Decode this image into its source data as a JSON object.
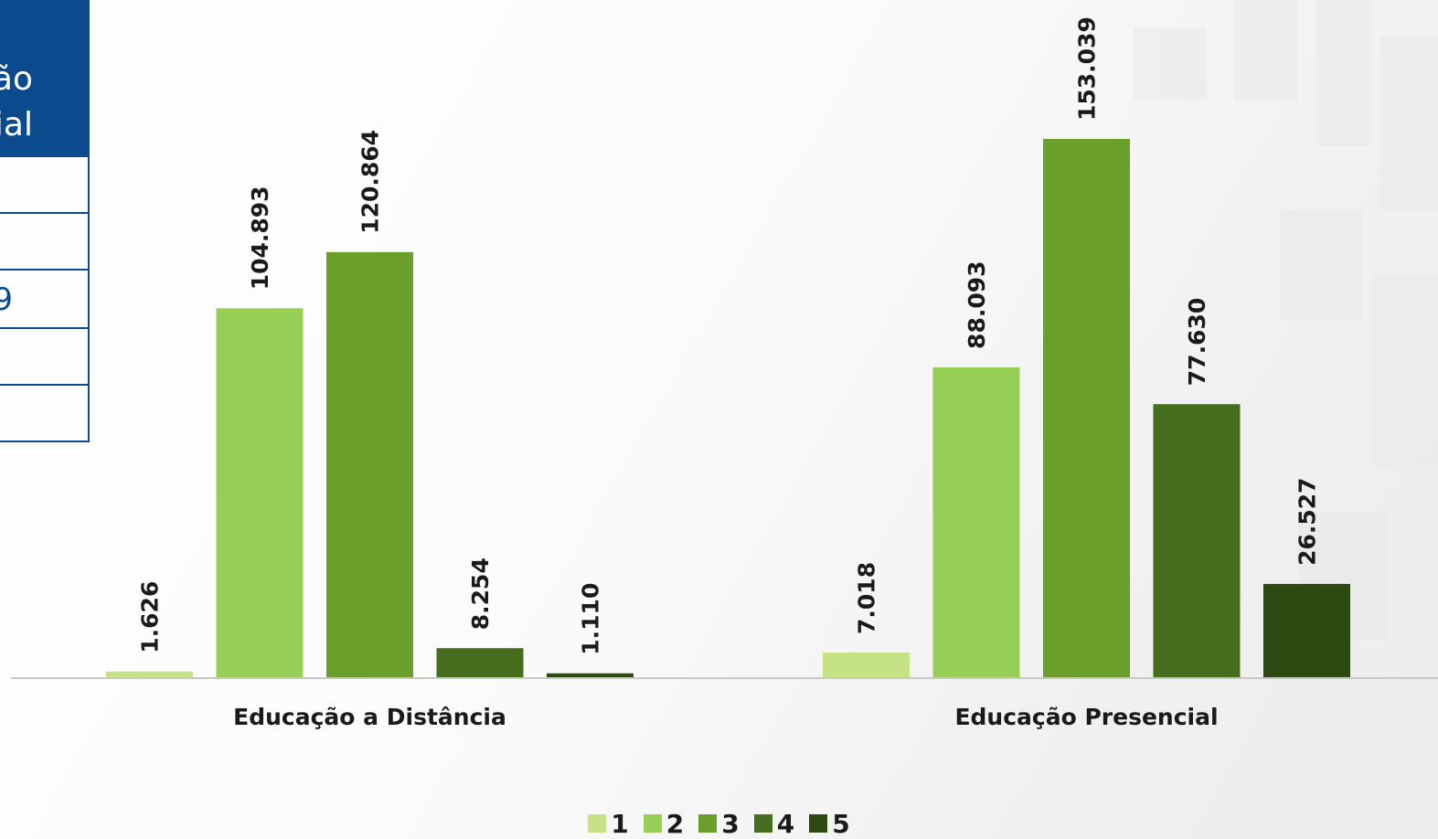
{
  "table_fragment": {
    "header_lines": [
      "ão",
      "ial"
    ],
    "rows": [
      "",
      "",
      "9",
      "",
      ""
    ]
  },
  "colors": {
    "table_blue": "#0b4a8c",
    "series": [
      "#c5e384",
      "#97cf56",
      "#6a9f2b",
      "#466c1e",
      "#2e4a13"
    ],
    "axis": "#c8c8c8"
  },
  "chart_data": {
    "type": "bar",
    "categories": [
      "Educação a Distância",
      "Educação Presencial"
    ],
    "series": [
      {
        "name": "1",
        "values": [
          1626,
          7018
        ],
        "labels": [
          "1.626",
          "7.018"
        ]
      },
      {
        "name": "2",
        "values": [
          104893,
          88093
        ],
        "labels": [
          "104.893",
          "88.093"
        ]
      },
      {
        "name": "3",
        "values": [
          120864,
          153039
        ],
        "labels": [
          "120.864",
          "153.039"
        ]
      },
      {
        "name": "4",
        "values": [
          8254,
          77630
        ],
        "labels": [
          "8.254",
          "77.630"
        ]
      },
      {
        "name": "5",
        "values": [
          1110,
          26527
        ],
        "labels": [
          "1.110",
          "26.527"
        ]
      }
    ],
    "ylim": [
      0,
      153039
    ],
    "legend": "bottom-center",
    "grid": false,
    "data_labels": "vertical"
  }
}
